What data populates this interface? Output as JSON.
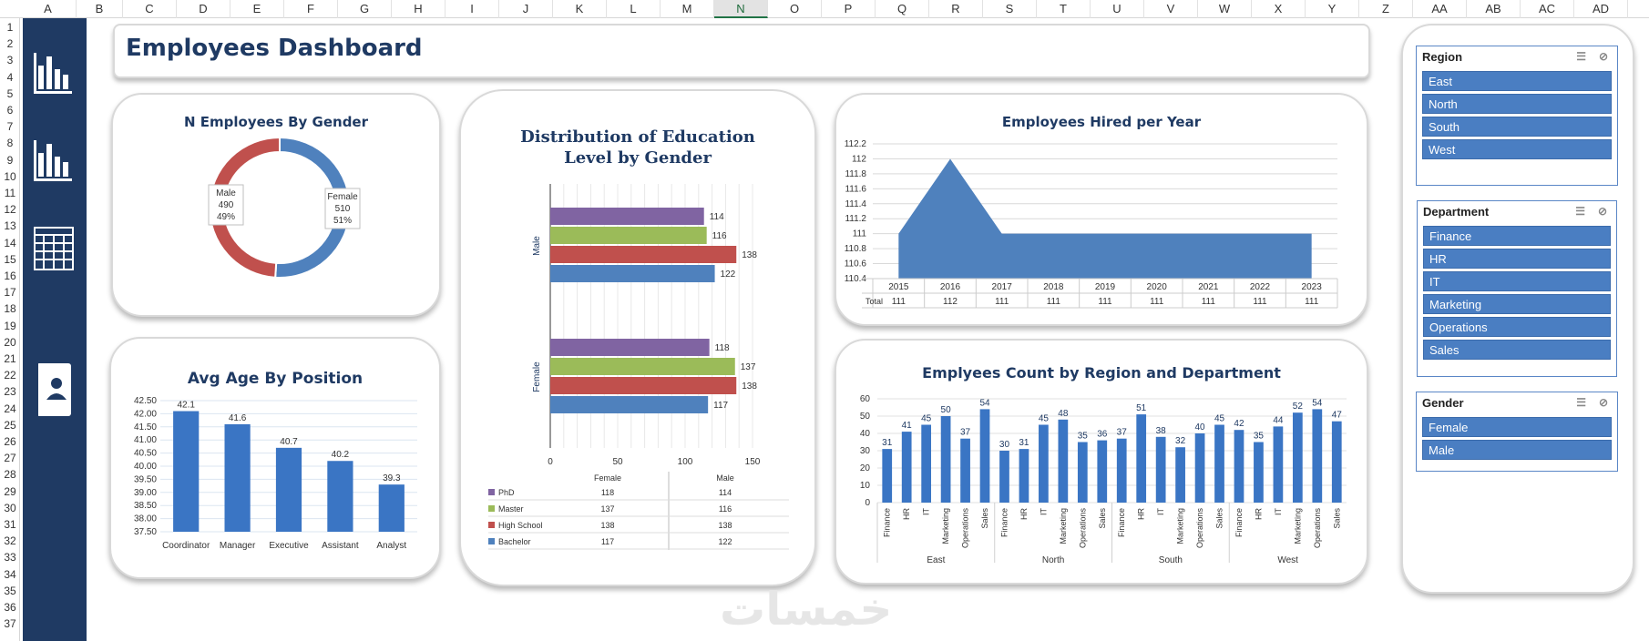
{
  "column_headers": [
    "A",
    "B",
    "C",
    "D",
    "E",
    "F",
    "G",
    "H",
    "I",
    "J",
    "K",
    "L",
    "M",
    "N",
    "O",
    "P",
    "Q",
    "R",
    "S",
    "T",
    "U",
    "V",
    "W",
    "X",
    "Y",
    "Z",
    "AA",
    "AB",
    "AC",
    "AD"
  ],
  "selected_column": "N",
  "row_headers": [
    "1",
    "2",
    "3",
    "4",
    "5",
    "6",
    "7",
    "8",
    "9",
    "10",
    "11",
    "12",
    "13",
    "14",
    "15",
    "16",
    "17",
    "18",
    "19",
    "20",
    "21",
    "22",
    "23",
    "24",
    "25",
    "26",
    "27",
    "28",
    "29",
    "30",
    "31",
    "32",
    "33",
    "34",
    "35",
    "36",
    "37"
  ],
  "dashboard_title": "Employees Dashboard",
  "nav_icons": [
    "bar-chart-icon",
    "bar-chart-icon",
    "calendar-icon",
    "contact-card-icon"
  ],
  "gender_chart": {
    "title": "N Employees By Gender",
    "male": {
      "label": "Male",
      "count": "490",
      "pct": "49%",
      "value": 490
    },
    "female": {
      "label": "Female",
      "count": "510",
      "pct": "51%",
      "value": 510
    },
    "colors": {
      "male": "#c0504d",
      "female": "#4f81bd"
    }
  },
  "age_chart": {
    "title": "Avg Age By Position",
    "categories": [
      "Coordinator",
      "Manager",
      "Executive",
      "Assistant",
      "Analyst"
    ],
    "values": [
      42.1,
      41.6,
      40.7,
      40.2,
      39.3
    ],
    "labels": [
      "42.1",
      "41.6",
      "40.7",
      "40.2",
      "39.3"
    ],
    "yticks": [
      "42.50",
      "42.00",
      "41.50",
      "41.00",
      "40.50",
      "40.00",
      "39.50",
      "39.00",
      "38.50",
      "38.00",
      "37.50"
    ]
  },
  "edu_chart": {
    "title_line1": "Distribution of Education",
    "title_line2": "Level by Gender",
    "groups": [
      "Male",
      "Female"
    ],
    "series": [
      {
        "name": "PhD",
        "color": "#8064a2",
        "values": [
          114,
          118
        ]
      },
      {
        "name": "Master",
        "color": "#9bbb59",
        "values": [
          116,
          137
        ]
      },
      {
        "name": "High School",
        "color": "#c0504d",
        "values": [
          138,
          138
        ]
      },
      {
        "name": "Bachelor",
        "color": "#4f81bd",
        "values": [
          122,
          117
        ]
      }
    ],
    "xticks": [
      "0",
      "50",
      "100",
      "150"
    ],
    "table_headers": [
      "Female",
      "Male"
    ],
    "table_rows": [
      [
        "PhD",
        "118",
        "114"
      ],
      [
        "Master",
        "137",
        "116"
      ],
      [
        "High School",
        "138",
        "138"
      ],
      [
        "Bachelor",
        "117",
        "122"
      ]
    ]
  },
  "hired_chart": {
    "title": "Employees Hired per Year",
    "years": [
      "2015",
      "2016",
      "2017",
      "2018",
      "2019",
      "2020",
      "2021",
      "2022",
      "2023"
    ],
    "values": [
      111,
      112,
      111,
      111,
      111,
      111,
      111,
      111,
      111
    ],
    "value_labels": [
      "111",
      "112",
      "111",
      "111",
      "111",
      "111",
      "111",
      "111",
      "111"
    ],
    "yticks": [
      "112.2",
      "112",
      "111.8",
      "111.6",
      "111.4",
      "111.2",
      "111",
      "110.8",
      "110.6",
      "110.4"
    ],
    "total_label": "Total"
  },
  "region_chart": {
    "title": "Emplyees Count by Region and Department",
    "regions": [
      "East",
      "North",
      "South",
      "West"
    ],
    "departments": [
      "Finance",
      "HR",
      "IT",
      "Marketing",
      "Operations",
      "Sales"
    ],
    "values": [
      [
        31,
        41,
        45,
        50,
        37,
        54
      ],
      [
        30,
        31,
        45,
        48,
        35,
        36
      ],
      [
        37,
        51,
        38,
        32,
        40,
        45
      ],
      [
        42,
        35,
        44,
        52,
        54,
        47
      ]
    ],
    "yticks": [
      "60",
      "50",
      "40",
      "30",
      "20",
      "10",
      "0"
    ]
  },
  "slicers": {
    "region": {
      "title": "Region",
      "items": [
        "East",
        "North",
        "South",
        "West"
      ]
    },
    "department": {
      "title": "Department",
      "items": [
        "Finance",
        "HR",
        "IT",
        "Marketing",
        "Operations",
        "Sales"
      ]
    },
    "gender": {
      "title": "Gender",
      "items": [
        "Female",
        "Male"
      ]
    }
  },
  "watermark": "خمسات"
}
